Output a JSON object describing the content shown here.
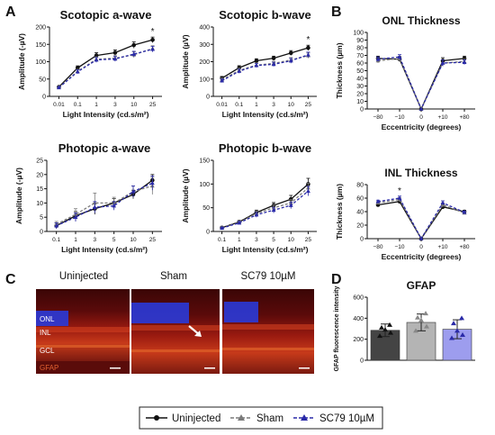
{
  "panel_labels": [
    "A",
    "B",
    "C",
    "D"
  ],
  "legend": {
    "items": [
      {
        "label": "Uninjected",
        "color": "#111111",
        "marker": "circle",
        "dash": "solid"
      },
      {
        "label": "Sham",
        "color": "#7a7a7a",
        "marker": "triangle",
        "dash": "dashed"
      },
      {
        "label": "SC79 10µM",
        "color": "#2a2aa8",
        "marker": "triangle",
        "dash": "dashed"
      }
    ]
  },
  "colors": {
    "uninjected": "#111111",
    "sham": "#7a7a7a",
    "sc79": "#2a2aa8",
    "bar_uninjected": "#444444",
    "bar_sham": "#b4b4b4",
    "bar_sc79": "#9d9dee"
  },
  "micrographs": {
    "titles": [
      "Uninjected",
      "Sham",
      "SC79 10µM"
    ],
    "layer_labels": [
      "ONL",
      "INL",
      "GCL"
    ],
    "stain_label": "GFAP"
  },
  "chart_data": [
    {
      "id": "scotopic-a",
      "type": "line",
      "title": "Scotopic a-wave",
      "xlabel": "Light Intensity (cd.s/m²)",
      "ylabel": "Amplitude (-µV)",
      "categories": [
        "0.01",
        "0.1",
        "1",
        "3",
        "10",
        "25"
      ],
      "ylim": [
        0,
        200
      ],
      "yticks": [
        0,
        50,
        100,
        150,
        200
      ],
      "series": [
        {
          "name": "Uninjected",
          "values": [
            27,
            82,
            118,
            126,
            148,
            163
          ],
          "err": [
            3,
            6,
            8,
            8,
            9,
            8
          ]
        },
        {
          "name": "Sham",
          "values": [
            26,
            72,
            107,
            110,
            120,
            138
          ],
          "err": [
            3,
            6,
            7,
            7,
            8,
            8
          ]
        },
        {
          "name": "SC79 10µM",
          "values": [
            25,
            71,
            105,
            108,
            122,
            136
          ],
          "err": [
            3,
            6,
            7,
            7,
            8,
            8
          ]
        }
      ],
      "annotations": [
        {
          "text": "*",
          "category": "25"
        }
      ]
    },
    {
      "id": "scotopic-b",
      "type": "line",
      "title": "Scotopic b-wave",
      "xlabel": "Light Intensity (cd.s/m²)",
      "ylabel": "Amplitude (µV)",
      "categories": [
        "0.01",
        "0.1",
        "1",
        "3",
        "10",
        "25"
      ],
      "ylim": [
        0,
        400
      ],
      "yticks": [
        0,
        100,
        200,
        300,
        400
      ],
      "series": [
        {
          "name": "Uninjected",
          "values": [
            105,
            165,
            205,
            220,
            250,
            280
          ],
          "err": [
            10,
            12,
            12,
            12,
            14,
            15
          ]
        },
        {
          "name": "Sham",
          "values": [
            95,
            150,
            180,
            190,
            210,
            235
          ],
          "err": [
            10,
            12,
            12,
            12,
            14,
            15
          ]
        },
        {
          "name": "SC79 10µM",
          "values": [
            90,
            145,
            178,
            185,
            205,
            240
          ],
          "err": [
            10,
            12,
            12,
            12,
            14,
            15
          ]
        }
      ],
      "annotations": [
        {
          "text": "*",
          "category": "25"
        }
      ]
    },
    {
      "id": "photopic-a",
      "type": "line",
      "title": "Photopic a-wave",
      "xlabel": "Light Intensity (cd.s/m²)",
      "ylabel": "Amplitude (-µV)",
      "categories": [
        "0.1",
        "1",
        "3",
        "5",
        "10",
        "25"
      ],
      "ylim": [
        0,
        25
      ],
      "yticks": [
        0,
        5,
        10,
        15,
        20,
        25
      ],
      "series": [
        {
          "name": "Uninjected",
          "values": [
            2,
            5.5,
            8,
            10,
            13,
            18
          ],
          "err": [
            1,
            1.5,
            2,
            1.5,
            1.5,
            2
          ]
        },
        {
          "name": "Sham",
          "values": [
            2.5,
            6,
            10,
            10,
            14,
            16
          ],
          "err": [
            1,
            2,
            3.5,
            2,
            2,
            3
          ]
        },
        {
          "name": "SC79 10µM",
          "values": [
            2,
            5,
            8.5,
            9,
            14,
            17
          ],
          "err": [
            1,
            1.5,
            2,
            1.5,
            2,
            2.5
          ]
        }
      ],
      "annotations": []
    },
    {
      "id": "photopic-b",
      "type": "line",
      "title": "Photopic b-wave",
      "xlabel": "Light Intensity (cd.s/m²)",
      "ylabel": "Amplitude (µV)",
      "categories": [
        "0.1",
        "1",
        "3",
        "5",
        "10",
        "25"
      ],
      "ylim": [
        0,
        150
      ],
      "yticks": [
        0,
        50,
        100,
        150
      ],
      "series": [
        {
          "name": "Uninjected",
          "values": [
            8,
            20,
            40,
            55,
            68,
            100
          ],
          "err": [
            2,
            3,
            5,
            6,
            8,
            12
          ]
        },
        {
          "name": "Sham",
          "values": [
            8,
            19,
            38,
            50,
            60,
            92
          ],
          "err": [
            2,
            3,
            5,
            6,
            7,
            10
          ]
        },
        {
          "name": "SC79 10µM",
          "values": [
            7,
            18,
            35,
            45,
            55,
            85
          ],
          "err": [
            2,
            3,
            5,
            6,
            7,
            10
          ]
        }
      ],
      "annotations": []
    },
    {
      "id": "onl-thickness",
      "type": "line",
      "title": "ONL Thickness",
      "xlabel": "Eccentricity (degrees)",
      "ylabel": "Thickness (µm)",
      "categories": [
        "−80",
        "−10",
        "0",
        "+10",
        "+80"
      ],
      "ylim": [
        0,
        100
      ],
      "yticks": [
        0,
        10,
        20,
        30,
        40,
        50,
        60,
        70,
        80,
        90,
        100
      ],
      "series": [
        {
          "name": "Uninjected",
          "values": [
            66,
            65,
            0,
            63,
            66
          ],
          "err": [
            3,
            3,
            0,
            4,
            3
          ]
        },
        {
          "name": "Sham",
          "values": [
            63,
            66,
            0,
            60,
            62
          ],
          "err": [
            3,
            3,
            0,
            4,
            3
          ]
        },
        {
          "name": "SC79 10µM",
          "values": [
            65,
            68,
            0,
            60,
            61
          ],
          "err": [
            3,
            3,
            0,
            4,
            3
          ]
        }
      ],
      "annotations": []
    },
    {
      "id": "inl-thickness",
      "type": "line",
      "title": "INL Thickness",
      "xlabel": "Eccentricity (degrees)",
      "ylabel": "Thickness (µm)",
      "categories": [
        "−80",
        "−10",
        "0",
        "+10",
        "+80"
      ],
      "ylim": [
        0,
        80
      ],
      "yticks": [
        0,
        20,
        40,
        60,
        80
      ],
      "series": [
        {
          "name": "Uninjected",
          "values": [
            50,
            55,
            0,
            47,
            40
          ],
          "err": [
            2,
            3,
            0,
            3,
            2
          ]
        },
        {
          "name": "Sham",
          "values": [
            53,
            58,
            0,
            50,
            38
          ],
          "err": [
            2,
            3,
            0,
            3,
            2
          ]
        },
        {
          "name": "SC79 10µM",
          "values": [
            55,
            60,
            0,
            53,
            39
          ],
          "err": [
            2,
            3,
            0,
            3,
            2
          ]
        }
      ],
      "annotations": [
        {
          "text": "*",
          "category": "−10"
        }
      ]
    },
    {
      "id": "gfap",
      "type": "bar",
      "title": "GFAP",
      "xlabel": "",
      "ylabel": "GFAP fluorescence intensity",
      "categories": [
        "Uninjected",
        "Sham",
        "SC79 10µM"
      ],
      "ylim": [
        0,
        600
      ],
      "yticks": [
        0,
        200,
        400,
        600
      ],
      "values": [
        285,
        360,
        295
      ],
      "err": [
        60,
        80,
        90
      ],
      "points": [
        [
          230,
          260,
          290,
          310,
          335
        ],
        [
          280,
          320,
          380,
          405,
          445
        ],
        [
          210,
          240,
          280,
          350,
          400
        ]
      ]
    }
  ]
}
